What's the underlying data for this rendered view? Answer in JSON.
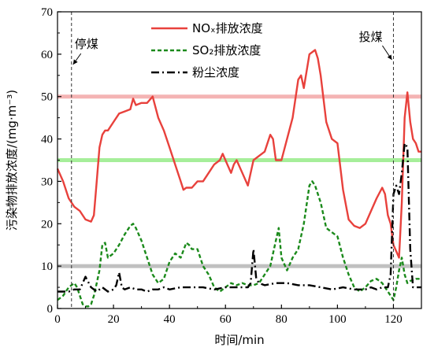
{
  "chart_data": {
    "type": "line",
    "xlabel": "时间/min",
    "ylabel": "污染物排放浓度/(mg·m⁻³)",
    "xlim": [
      0,
      130
    ],
    "ylim": [
      0,
      70
    ],
    "xticks": [
      "0",
      "20",
      "40",
      "60",
      "80",
      "100",
      "120"
    ],
    "yticks": [
      "0",
      "10",
      "20",
      "30",
      "40",
      "50",
      "60",
      "70"
    ],
    "grid": false,
    "legend_position": "top-center",
    "annotations": [
      {
        "text": "停煤",
        "x": 5,
        "y": 65
      },
      {
        "text": "投煤",
        "x": 120,
        "y": 65
      }
    ],
    "vlines": [
      5,
      120
    ],
    "hlines": [
      {
        "y": 50,
        "color": "#f4b4b4"
      },
      {
        "y": 35,
        "color": "#a6ee9a"
      },
      {
        "y": 10,
        "color": "#c0c0c0"
      }
    ],
    "series": [
      {
        "name": "NOₓ排放浓度",
        "color": "#e8413c",
        "dash": "solid",
        "x": [
          0,
          2,
          4,
          6,
          8,
          10,
          12,
          13,
          14,
          15,
          16,
          17,
          18,
          20,
          22,
          24,
          26,
          27,
          28,
          30,
          32,
          34,
          36,
          38,
          40,
          42,
          44,
          45,
          46,
          48,
          50,
          52,
          54,
          56,
          58,
          59,
          60,
          62,
          63,
          64,
          66,
          68,
          69,
          70,
          72,
          74,
          76,
          77,
          78,
          80,
          82,
          84,
          86,
          87,
          88,
          90,
          92,
          93,
          94,
          96,
          98,
          100,
          102,
          104,
          106,
          108,
          110,
          112,
          114,
          116,
          117,
          118,
          119,
          120,
          122,
          123,
          124,
          125,
          126,
          127,
          128,
          129,
          130
        ],
        "y": [
          33,
          30,
          26,
          24,
          23,
          21,
          20.5,
          22,
          30,
          38,
          41,
          42,
          42,
          44,
          46,
          46.5,
          47,
          49.5,
          48,
          48.5,
          48.5,
          50,
          45,
          42,
          38,
          34,
          30,
          28,
          28.5,
          28.5,
          30,
          30,
          32,
          34,
          35,
          36.5,
          35,
          32,
          34,
          35,
          32,
          29,
          32,
          35,
          36,
          37,
          41,
          40,
          35,
          35,
          40,
          45,
          54,
          55,
          52,
          60,
          61,
          59,
          55,
          44,
          40,
          39,
          28,
          21,
          19.5,
          19,
          20,
          23,
          26,
          28.5,
          27,
          22,
          20,
          15,
          12,
          25,
          45,
          51,
          44,
          40,
          39,
          37,
          37
        ]
      },
      {
        "name": "SO₂排放浓度",
        "color": "#1b8a1b",
        "dash": "dashed",
        "x": [
          0,
          2,
          4,
          6,
          7,
          8,
          9,
          10,
          11,
          12,
          13,
          14,
          15,
          16,
          17,
          18,
          20,
          22,
          24,
          26,
          27,
          28,
          30,
          32,
          34,
          36,
          38,
          40,
          42,
          44,
          46,
          47,
          48,
          50,
          52,
          54,
          56,
          58,
          60,
          62,
          64,
          66,
          68,
          70,
          72,
          74,
          76,
          78,
          79,
          80,
          82,
          84,
          86,
          88,
          90,
          91,
          92,
          94,
          96,
          98,
          100,
          102,
          104,
          106,
          108,
          110,
          112,
          114,
          116,
          118,
          120,
          121,
          122,
          123,
          124,
          125,
          126,
          128,
          130
        ],
        "y": [
          2,
          3,
          5,
          6,
          5,
          3,
          1,
          0.5,
          0.5,
          1,
          3,
          6,
          9,
          15,
          15.5,
          12,
          13,
          15,
          17.5,
          19.5,
          20,
          19,
          16,
          12,
          8,
          6,
          7,
          11,
          13,
          12,
          15.5,
          15,
          14,
          14,
          10,
          8,
          5,
          4,
          5,
          6,
          5.5,
          6,
          5.5,
          5.5,
          6,
          8,
          10,
          16,
          19,
          12,
          9,
          12,
          14,
          20,
          29,
          30,
          29,
          25,
          19,
          18,
          17,
          12,
          8,
          5,
          4,
          5,
          6.5,
          7,
          6,
          4,
          2,
          5,
          9,
          12,
          8,
          6,
          6.5,
          7,
          7
        ]
      },
      {
        "name": "粉尘浓度",
        "color": "#000000",
        "dash": "dashdot",
        "x": [
          0,
          4,
          6,
          8,
          9,
          10,
          12,
          14,
          16,
          18,
          20,
          21,
          22,
          23,
          24,
          26,
          28,
          30,
          32,
          34,
          36,
          38,
          40,
          44,
          48,
          52,
          56,
          60,
          64,
          68,
          69,
          70,
          71,
          72,
          74,
          78,
          82,
          86,
          90,
          94,
          98,
          102,
          106,
          110,
          112,
          114,
          116,
          118,
          119,
          120,
          121,
          122,
          123,
          124,
          125,
          126,
          127,
          128,
          130
        ],
        "y": [
          4,
          4,
          4.5,
          4.5,
          6,
          7.5,
          5,
          4,
          5,
          4,
          4.5,
          5.5,
          8.5,
          5,
          4.5,
          5,
          4.5,
          4.5,
          4,
          4.5,
          4.5,
          5,
          4.5,
          5,
          5,
          5,
          4.5,
          5,
          5,
          5,
          6,
          14,
          7,
          6,
          5.5,
          6,
          6,
          5.5,
          5.5,
          5,
          4.5,
          5,
          4.5,
          4.5,
          5,
          4.5,
          5,
          5,
          8,
          27,
          29,
          27,
          32,
          39,
          38,
          14,
          5,
          5,
          5
        ]
      }
    ]
  }
}
